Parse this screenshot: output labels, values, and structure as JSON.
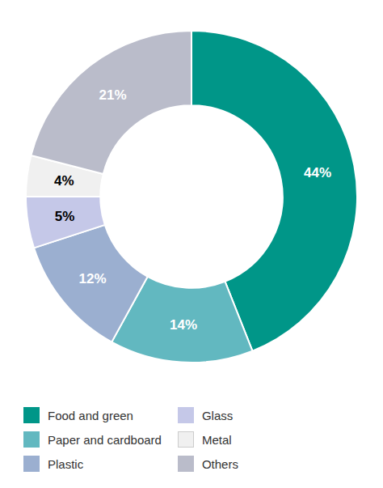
{
  "chart_data": {
    "type": "donut",
    "categories": [
      "Food and green",
      "Paper and cardboard",
      "Plastic",
      "Glass",
      "Metal",
      "Others"
    ],
    "values": [
      44,
      14,
      12,
      5,
      4,
      21
    ],
    "value_labels": [
      "44%",
      "14%",
      "12%",
      "5%",
      "4%",
      "21%"
    ],
    "colors": [
      "#009688",
      "#62B8C0",
      "#9BAFD0",
      "#C5C8E8",
      "#F0F0F0",
      "#BABCCA"
    ],
    "data_labels": true,
    "legend": "lower left"
  }
}
